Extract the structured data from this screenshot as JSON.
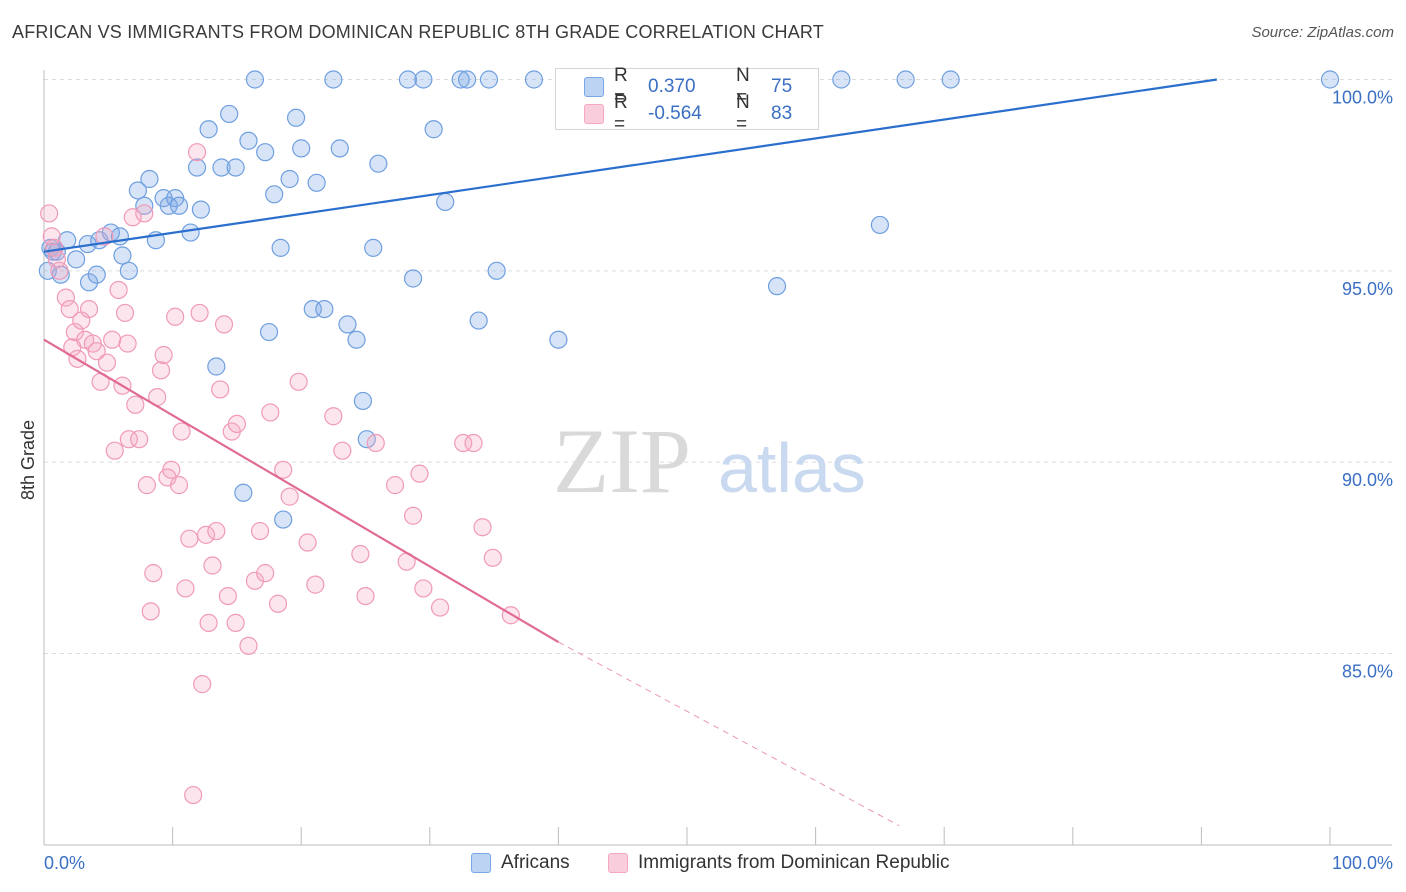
{
  "header": {
    "title": "AFRICAN VS IMMIGRANTS FROM DOMINICAN REPUBLIC 8TH GRADE CORRELATION CHART",
    "source": "Source: ZipAtlas.com"
  },
  "watermark": {
    "part1": "ZIP",
    "part2": "atlas"
  },
  "legend_stats": {
    "rows": [
      {
        "r_label": "R =",
        "r_value": "0.370",
        "n_label": "N =",
        "n_value": "75"
      },
      {
        "r_label": "R =",
        "r_value": "-0.564",
        "n_label": "N =",
        "n_value": "83"
      }
    ]
  },
  "chart_data": {
    "type": "scatter",
    "title": "AFRICAN VS IMMIGRANTS FROM DOMINICAN REPUBLIC 8TH GRADE CORRELATION CHART",
    "ylabel": "8th Grade",
    "xlabel": "",
    "xlim": [
      0,
      100
    ],
    "ylim": [
      80.5,
      101.5
    ],
    "x_tick_labels": [
      "0.0%",
      "100.0%"
    ],
    "y_ticks": [
      85,
      90,
      95,
      100
    ],
    "y_tick_labels": [
      "85.0%",
      "90.0%",
      "95.0%",
      "100.0%"
    ],
    "grid": true,
    "legend_position": "bottom",
    "colors": {
      "africans": "#7aa7e6",
      "dominican": "#f4a8c2",
      "blue_line": "#2a6fcd",
      "pink_line": "#e06a95"
    },
    "series": [
      {
        "name": "Africans",
        "r": 0.37,
        "n": 75,
        "trend": {
          "x0": 0,
          "y0": 95.5,
          "x1": 91.2,
          "y1": 100.0
        },
        "points": [
          [
            0.5,
            95.6
          ],
          [
            0.7,
            95.5
          ],
          [
            1.3,
            94.9
          ],
          [
            1.8,
            95.8
          ],
          [
            2.5,
            95.3
          ],
          [
            3.4,
            95.7
          ],
          [
            3.5,
            94.7
          ],
          [
            4.1,
            94.9
          ],
          [
            4.3,
            95.8
          ],
          [
            5.2,
            96.0
          ],
          [
            5.9,
            95.9
          ],
          [
            6.1,
            95.4
          ],
          [
            6.6,
            95.0
          ],
          [
            7.3,
            97.1
          ],
          [
            7.8,
            96.7
          ],
          [
            8.2,
            97.4
          ],
          [
            8.7,
            95.8
          ],
          [
            9.3,
            96.9
          ],
          [
            9.7,
            96.7
          ],
          [
            10.2,
            96.9
          ],
          [
            10.5,
            96.7
          ],
          [
            11.4,
            96.0
          ],
          [
            11.9,
            97.7
          ],
          [
            12.2,
            96.6
          ],
          [
            12.8,
            98.7
          ],
          [
            13.4,
            92.5
          ],
          [
            13.8,
            97.7
          ],
          [
            14.4,
            99.1
          ],
          [
            14.9,
            97.7
          ],
          [
            15.5,
            89.2
          ],
          [
            15.9,
            98.4
          ],
          [
            16.4,
            100.0
          ],
          [
            17.2,
            98.1
          ],
          [
            17.5,
            93.4
          ],
          [
            17.9,
            97.0
          ],
          [
            18.4,
            95.6
          ],
          [
            18.6,
            88.5
          ],
          [
            19.1,
            97.4
          ],
          [
            19.6,
            99.0
          ],
          [
            20.0,
            98.2
          ],
          [
            20.9,
            94.0
          ],
          [
            21.2,
            97.3
          ],
          [
            21.8,
            94.0
          ],
          [
            22.5,
            100.0
          ],
          [
            23.0,
            98.2
          ],
          [
            23.6,
            93.6
          ],
          [
            24.3,
            93.2
          ],
          [
            24.8,
            91.6
          ],
          [
            25.1,
            90.6
          ],
          [
            25.6,
            95.6
          ],
          [
            26.0,
            97.8
          ],
          [
            28.3,
            100.0
          ],
          [
            28.7,
            94.8
          ],
          [
            29.5,
            100.0
          ],
          [
            30.3,
            98.7
          ],
          [
            31.2,
            96.8
          ],
          [
            32.4,
            100.0
          ],
          [
            32.9,
            100.0
          ],
          [
            33.8,
            93.7
          ],
          [
            34.6,
            100.0
          ],
          [
            35.2,
            95.0
          ],
          [
            38.1,
            100.0
          ],
          [
            40.0,
            93.2
          ],
          [
            42.0,
            99.1
          ],
          [
            43.1,
            100.0
          ],
          [
            45.5,
            100.0
          ],
          [
            54.5,
            100.0
          ],
          [
            57.0,
            94.6
          ],
          [
            62.0,
            100.0
          ],
          [
            65.0,
            96.2
          ],
          [
            67.0,
            100.0
          ],
          [
            70.5,
            100.0
          ],
          [
            100.0,
            100.0
          ],
          [
            0.3,
            95.0
          ],
          [
            1.0,
            95.5
          ]
        ]
      },
      {
        "name": "Immigrants from Dominican Republic",
        "r": -0.564,
        "n": 83,
        "trend": {
          "x0": 0,
          "y0": 93.2,
          "x1": 40.0,
          "y1": 85.3
        },
        "trend_dashed": {
          "x0": 40.0,
          "y0": 85.3,
          "x1": 66.5,
          "y1": 80.5
        },
        "points": [
          [
            0.4,
            96.5
          ],
          [
            0.6,
            95.9
          ],
          [
            0.8,
            95.6
          ],
          [
            1.0,
            95.3
          ],
          [
            1.2,
            95.0
          ],
          [
            1.7,
            94.3
          ],
          [
            2.0,
            94.0
          ],
          [
            2.4,
            93.4
          ],
          [
            2.6,
            92.7
          ],
          [
            2.9,
            93.7
          ],
          [
            3.2,
            93.2
          ],
          [
            3.5,
            94.0
          ],
          [
            3.8,
            93.1
          ],
          [
            4.1,
            92.9
          ],
          [
            4.4,
            92.1
          ],
          [
            4.7,
            95.9
          ],
          [
            4.9,
            92.6
          ],
          [
            5.3,
            93.2
          ],
          [
            5.5,
            90.3
          ],
          [
            5.8,
            94.5
          ],
          [
            6.1,
            92.0
          ],
          [
            6.3,
            93.9
          ],
          [
            6.6,
            90.6
          ],
          [
            6.9,
            96.4
          ],
          [
            7.1,
            91.5
          ],
          [
            7.4,
            90.6
          ],
          [
            7.8,
            96.5
          ],
          [
            8.0,
            89.4
          ],
          [
            8.3,
            86.1
          ],
          [
            8.5,
            87.1
          ],
          [
            8.8,
            91.7
          ],
          [
            9.1,
            92.4
          ],
          [
            9.3,
            92.8
          ],
          [
            9.6,
            89.6
          ],
          [
            9.9,
            89.8
          ],
          [
            10.2,
            93.8
          ],
          [
            10.5,
            89.4
          ],
          [
            10.7,
            90.8
          ],
          [
            11.0,
            86.7
          ],
          [
            11.3,
            88.0
          ],
          [
            11.6,
            81.3
          ],
          [
            11.9,
            98.1
          ],
          [
            12.1,
            93.9
          ],
          [
            12.3,
            84.2
          ],
          [
            12.6,
            88.1
          ],
          [
            12.8,
            85.8
          ],
          [
            13.1,
            87.3
          ],
          [
            13.4,
            88.2
          ],
          [
            13.7,
            91.9
          ],
          [
            14.0,
            93.6
          ],
          [
            14.3,
            86.5
          ],
          [
            14.6,
            90.8
          ],
          [
            14.9,
            85.8
          ],
          [
            15.0,
            91.0
          ],
          [
            15.9,
            85.2
          ],
          [
            16.4,
            86.9
          ],
          [
            16.8,
            88.2
          ],
          [
            17.2,
            87.1
          ],
          [
            17.6,
            91.3
          ],
          [
            18.2,
            86.3
          ],
          [
            18.6,
            89.8
          ],
          [
            19.1,
            89.1
          ],
          [
            19.8,
            92.1
          ],
          [
            20.5,
            87.9
          ],
          [
            21.1,
            86.8
          ],
          [
            22.5,
            91.2
          ],
          [
            23.2,
            90.3
          ],
          [
            24.6,
            87.6
          ],
          [
            25.0,
            86.5
          ],
          [
            25.8,
            90.5
          ],
          [
            27.3,
            89.4
          ],
          [
            28.2,
            87.4
          ],
          [
            28.7,
            88.6
          ],
          [
            29.2,
            89.7
          ],
          [
            29.5,
            86.7
          ],
          [
            30.8,
            86.2
          ],
          [
            32.6,
            90.5
          ],
          [
            33.4,
            90.5
          ],
          [
            34.1,
            88.3
          ],
          [
            34.9,
            87.5
          ],
          [
            36.3,
            86.0
          ],
          [
            2.2,
            93.0
          ],
          [
            6.5,
            93.1
          ]
        ]
      }
    ]
  }
}
